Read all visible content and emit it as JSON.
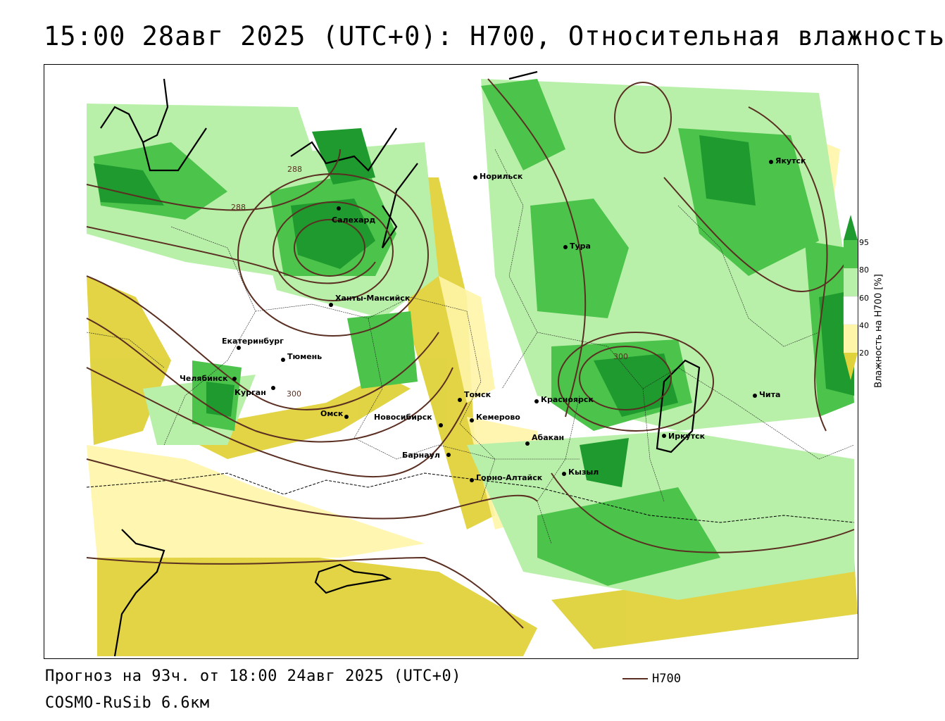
{
  "title": "15:00 28авг 2025 (UTC+0): H700, Относительная влажность",
  "footer": {
    "forecast": "Прогноз на 93ч. от 18:00 24авг 2025 (UTC+0)",
    "model": "COSMO-RuSib 6.6км"
  },
  "legend": {
    "title": "Влажность на H700 [%]",
    "ticks": [
      "95",
      "80",
      "60",
      "40",
      "20"
    ],
    "colors": {
      "c95": "#1f9a2e",
      "c80": "#4cc34b",
      "c60": "#b9f0a9",
      "c50": "#ffffff",
      "c40": "#fff5a8",
      "c20": "#e0d23a"
    }
  },
  "contour_key": {
    "label": "H700",
    "color": "#5a2f22"
  },
  "contour_labels": [
    "288",
    "288",
    "300",
    "300"
  ],
  "cities": [
    {
      "name": "Норильск"
    },
    {
      "name": "Якутск"
    },
    {
      "name": "Салехард"
    },
    {
      "name": "Тура"
    },
    {
      "name": "Ханты-Мансийск"
    },
    {
      "name": "Екатеринбург"
    },
    {
      "name": "Тюмень"
    },
    {
      "name": "Челябинск"
    },
    {
      "name": "Курган"
    },
    {
      "name": "Омск"
    },
    {
      "name": "Новосибирск"
    },
    {
      "name": "Томск"
    },
    {
      "name": "Кемерово"
    },
    {
      "name": "Красноярск"
    },
    {
      "name": "Абакан"
    },
    {
      "name": "Иркутск"
    },
    {
      "name": "Чита"
    },
    {
      "name": "Барнаул"
    },
    {
      "name": "Горно-Алтайск"
    },
    {
      "name": "Кызыл"
    }
  ]
}
